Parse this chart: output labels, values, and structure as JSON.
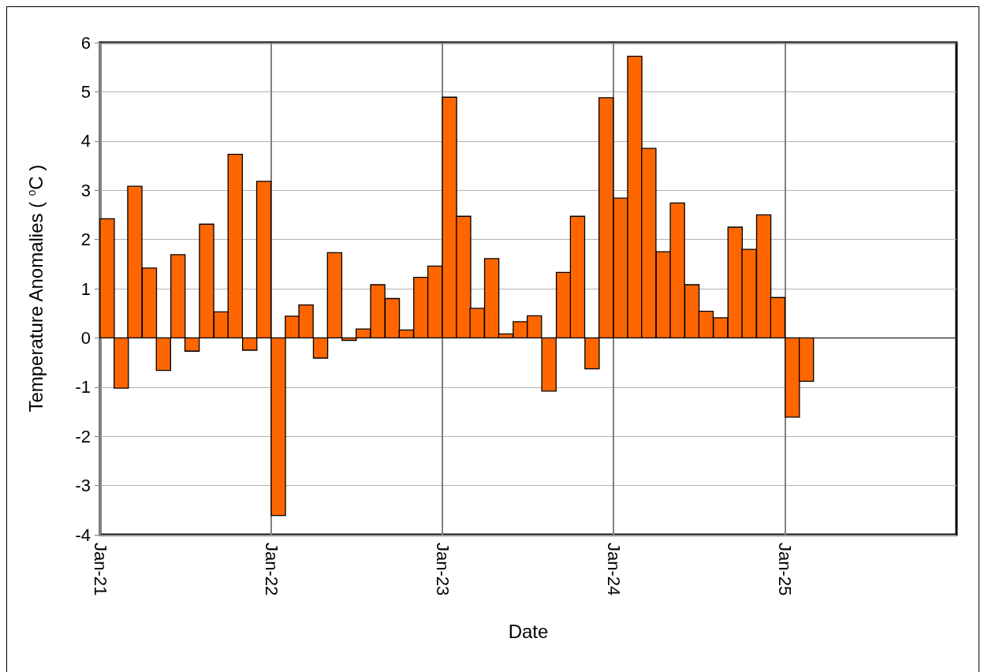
{
  "chart_data": {
    "type": "bar",
    "xlabel": "Date",
    "ylabel": "Temperature Anomalies ( $^{o}$C )",
    "x": [
      "2021-01-16",
      "2021-02-15",
      "2021-03-16",
      "2021-04-16",
      "2021-05-16",
      "2021-06-16",
      "2021-07-16",
      "2021-08-16",
      "2021-09-16",
      "2021-10-16",
      "2021-11-16",
      "2021-12-16",
      "2022-01-16",
      "2022-02-15",
      "2022-03-16",
      "2022-04-16",
      "2022-05-16",
      "2022-06-16",
      "2022-07-16",
      "2022-08-16",
      "2022-09-16",
      "2022-10-16",
      "2022-11-16",
      "2022-12-16",
      "2023-01-16",
      "2023-02-15",
      "2023-03-16",
      "2023-04-16",
      "2023-05-16",
      "2023-06-16",
      "2023-07-16",
      "2023-08-16",
      "2023-09-16",
      "2023-10-16",
      "2023-11-16",
      "2023-12-16",
      "2024-01-16",
      "2024-02-15",
      "2024-03-16",
      "2024-04-16",
      "2024-05-16",
      "2024-06-16",
      "2024-07-16",
      "2024-08-16",
      "2024-09-16",
      "2024-10-16",
      "2024-11-16",
      "2024-12-16",
      "2025-01-16",
      "2025-02-15"
    ],
    "values": [
      2.42,
      -1.02,
      3.08,
      1.42,
      -0.66,
      1.69,
      -0.27,
      2.31,
      0.53,
      3.73,
      -0.25,
      3.18,
      -3.61,
      0.44,
      0.67,
      -0.41,
      1.73,
      -0.05,
      0.18,
      1.08,
      0.8,
      0.16,
      1.23,
      1.46,
      4.89,
      2.47,
      0.6,
      1.61,
      0.08,
      0.33,
      0.45,
      -1.08,
      1.33,
      2.47,
      -0.63,
      4.88,
      2.84,
      5.72,
      3.85,
      1.75,
      2.74,
      1.08,
      0.54,
      0.41,
      2.25,
      1.8,
      2.5,
      0.82,
      -1.61,
      -0.88
    ],
    "color": "#ff6600",
    "xlim": [
      "2021-01",
      "2026-01"
    ],
    "xticks": [
      {
        "value": "2021-01",
        "label": "Jan-21"
      },
      {
        "value": "2022-01",
        "label": "Jan-22"
      },
      {
        "value": "2023-01",
        "label": "Jan-23"
      },
      {
        "value": "2024-01",
        "label": "Jan-24"
      },
      {
        "value": "2025-01",
        "label": "Jan-25"
      }
    ],
    "ylim": [
      -4,
      6
    ],
    "yticks": [
      -4,
      -3,
      -2,
      -1,
      0,
      1,
      2,
      3,
      4,
      5,
      6
    ],
    "grid": true
  }
}
